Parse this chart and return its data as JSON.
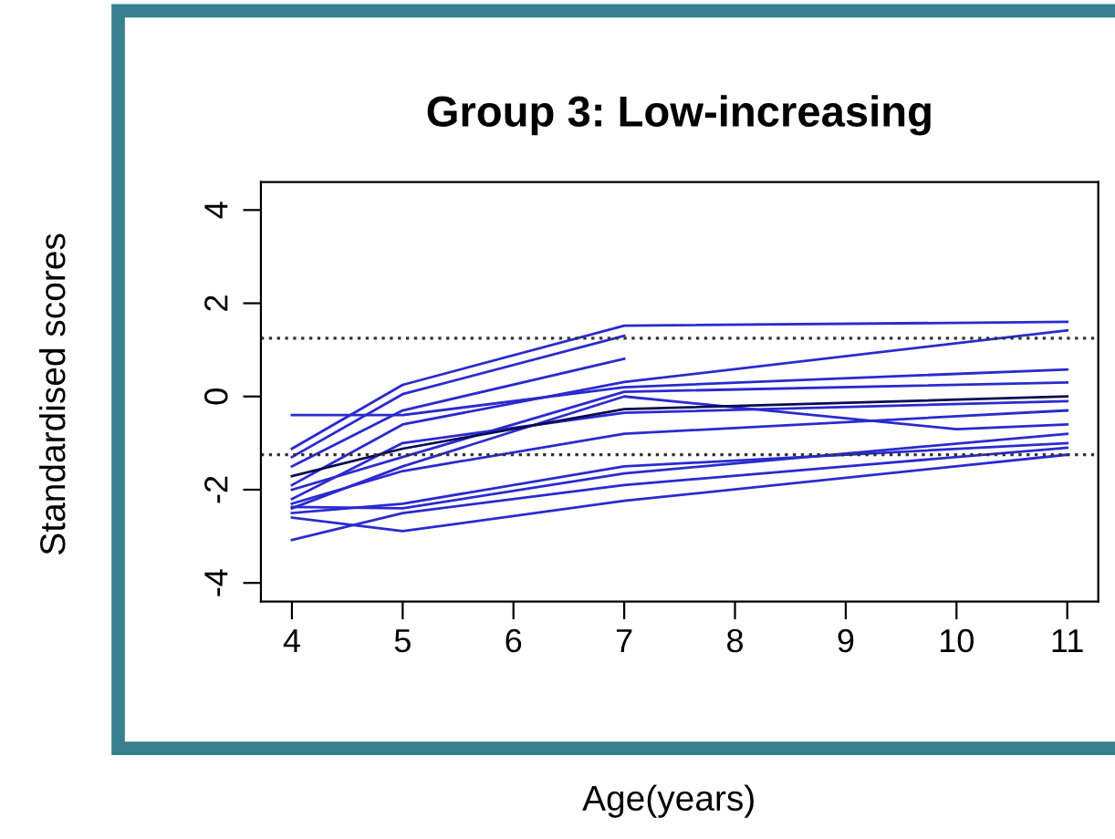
{
  "chart_data": {
    "type": "line",
    "title": "Group 3: Low-increasing",
    "xlabel": "Age(years)",
    "ylabel": "Standardised scores",
    "xlim": [
      3.72,
      11.28
    ],
    "ylim": [
      -4.4,
      4.6
    ],
    "xticks": [
      4,
      5,
      6,
      7,
      8,
      9,
      10,
      11
    ],
    "yticks": [
      -4,
      -2,
      0,
      2,
      4
    ],
    "grid": false,
    "marker": "none",
    "line_style": "solid",
    "ref_lines": [
      {
        "axis": "y",
        "value": 1.25,
        "color": "#333333",
        "line_style": "dotted"
      },
      {
        "axis": "y",
        "value": -1.25,
        "color": "#333333",
        "line_style": "dotted"
      }
    ],
    "series": [
      {
        "color": "#2a2ad0",
        "x": [
          4,
          5,
          7,
          11
        ],
        "values": [
          -1.12,
          0.25,
          1.52,
          1.6
        ]
      },
      {
        "color": "#2a2ad0",
        "x": [
          4,
          5,
          7
        ],
        "values": [
          -1.3,
          0.05,
          1.3
        ]
      },
      {
        "color": "#2a2ad0",
        "x": [
          4,
          5,
          7,
          11
        ],
        "values": [
          -1.9,
          -0.6,
          0.31,
          1.42
        ]
      },
      {
        "color": "#2a2ad0",
        "x": [
          4,
          5,
          7
        ],
        "values": [
          -1.5,
          -0.3,
          0.81
        ]
      },
      {
        "color": "#2a2ad0",
        "x": [
          4,
          5,
          7,
          11
        ],
        "values": [
          -0.4,
          -0.4,
          0.2,
          0.58
        ]
      },
      {
        "color": "#2a2ad0",
        "x": [
          4,
          5,
          7,
          11
        ],
        "values": [
          -2.0,
          -1.3,
          0.1,
          0.3
        ]
      },
      {
        "color": "#2a2ad0",
        "x": [
          4,
          5,
          7,
          11
        ],
        "values": [
          -2.2,
          -1.0,
          -0.35,
          -0.1
        ]
      },
      {
        "color": "#2a2ad0",
        "x": [
          4,
          5,
          7,
          10,
          11
        ],
        "values": [
          -2.4,
          -1.5,
          0.0,
          -0.7,
          -0.6
        ]
      },
      {
        "color": "#2a2ad0",
        "x": [
          4,
          5,
          7,
          11
        ],
        "values": [
          -2.3,
          -1.6,
          -0.8,
          -0.3
        ]
      },
      {
        "color": "#2a2ad0",
        "x": [
          4,
          5,
          7,
          11
        ],
        "values": [
          -2.37,
          -2.4,
          -1.65,
          -0.8
        ]
      },
      {
        "color": "#2a2ad0",
        "x": [
          4,
          5,
          7,
          11
        ],
        "values": [
          -2.6,
          -2.89,
          -2.24,
          -1.25
        ]
      },
      {
        "color": "#2a2ad0",
        "x": [
          4,
          5,
          7,
          11
        ],
        "values": [
          -3.08,
          -2.5,
          -1.9,
          -1.1
        ]
      },
      {
        "color": "#2a2ad0",
        "x": [
          4,
          5,
          7,
          11
        ],
        "values": [
          -2.5,
          -2.3,
          -1.5,
          -1.0
        ]
      },
      {
        "color": "#0a0a50",
        "x": [
          4,
          5,
          7,
          11
        ],
        "values": [
          -1.71,
          -1.12,
          -0.27,
          0.0
        ]
      }
    ]
  }
}
